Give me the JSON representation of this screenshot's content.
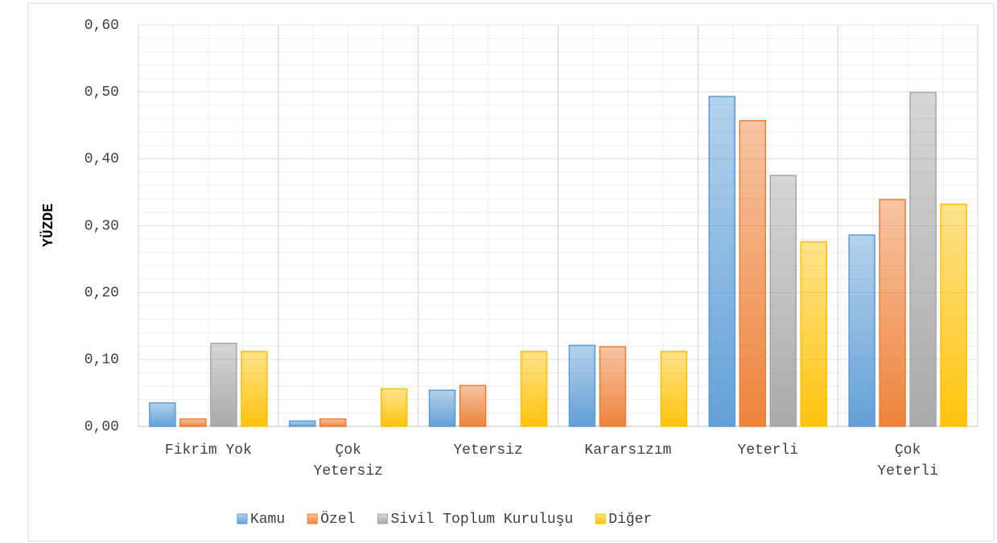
{
  "chart_data": {
    "type": "bar",
    "y_label": "YÜZDE",
    "categories": [
      "Fikrim Yok",
      "Çok Yetersiz",
      "Yetersiz",
      "Kararsızım",
      "Yeterli",
      "Çok Yeterli"
    ],
    "series": [
      {
        "name": "Kamu",
        "color": "#5b9bd5",
        "values": [
          0.035,
          0.008,
          0.054,
          0.121,
          0.493,
          0.286
        ]
      },
      {
        "name": "Özel",
        "color": "#ed7d31",
        "values": [
          0.011,
          0.011,
          0.061,
          0.119,
          0.457,
          0.339
        ]
      },
      {
        "name": "Sivil Toplum Kuruluşu",
        "color": "#a5a5a5",
        "values": [
          0.124,
          0,
          0,
          0,
          0.375,
          0.499
        ]
      },
      {
        "name": "Diğer",
        "color": "#ffc000",
        "values": [
          0.112,
          0.056,
          0.112,
          0.112,
          0.276,
          0.332
        ]
      }
    ],
    "ylim": [
      0,
      0.6
    ],
    "yticks": [
      {
        "value": 0,
        "label": "0,00"
      },
      {
        "value": 0.1,
        "label": "0,10"
      },
      {
        "value": 0.2,
        "label": "0,20"
      },
      {
        "value": 0.3,
        "label": "0,30"
      },
      {
        "value": 0.4,
        "label": "0,40"
      },
      {
        "value": 0.5,
        "label": "0,50"
      },
      {
        "value": 0.6,
        "label": "0,60"
      }
    ],
    "grid": true,
    "legend": "bottom"
  }
}
